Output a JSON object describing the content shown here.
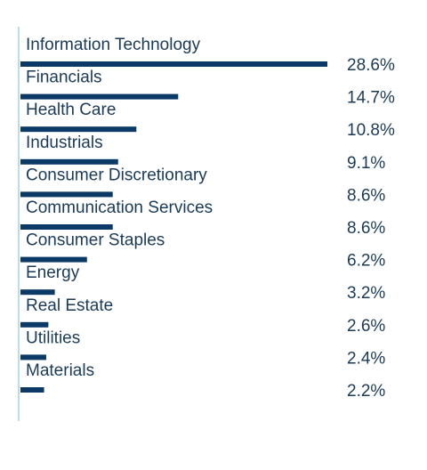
{
  "chart_data": {
    "type": "bar",
    "orientation": "horizontal",
    "categories": [
      "Information Technology",
      "Financials",
      "Health Care",
      "Industrials",
      "Consumer Discretionary",
      "Communication Services",
      "Consumer Staples",
      "Energy",
      "Real Estate",
      "Utilities",
      "Materials"
    ],
    "values": [
      28.6,
      14.7,
      10.8,
      9.1,
      8.6,
      8.6,
      6.2,
      3.2,
      2.6,
      2.4,
      2.2
    ],
    "value_labels": [
      "28.6%",
      "14.7%",
      "10.8%",
      "9.1%",
      "8.6%",
      "8.6%",
      "6.2%",
      "3.2%",
      "2.6%",
      "2.4%",
      "2.2%"
    ],
    "title": "",
    "xlabel": "",
    "ylabel": "",
    "xlim": [
      0,
      28.6
    ],
    "grid": false,
    "legend": "none",
    "colors": {
      "bar": "#0b3a66",
      "axis": "#a9cfe0",
      "text": "#1a3a57"
    }
  }
}
